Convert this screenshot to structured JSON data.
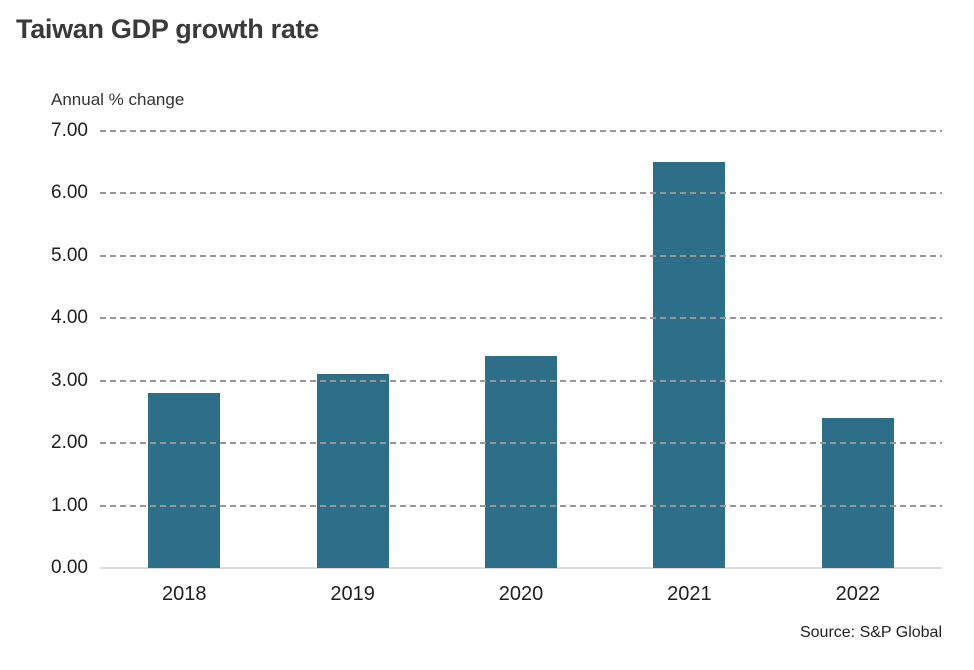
{
  "title": "Taiwan GDP growth rate",
  "axis_label": "Annual % change",
  "source": "Source: S&P Global",
  "colors": {
    "bar": "#2d6f89",
    "gridline": "#979797",
    "baseline": "#dcdcdc",
    "title_text": "#3a3a3a",
    "tick_text": "#1f1f1f"
  },
  "chart_data": {
    "type": "bar",
    "categories": [
      "2018",
      "2019",
      "2020",
      "2021",
      "2022"
    ],
    "values": [
      2.8,
      3.1,
      3.4,
      6.5,
      2.4
    ],
    "title": "Taiwan GDP growth rate",
    "xlabel": "",
    "ylabel": "Annual % change",
    "ylim": [
      0,
      7
    ],
    "ytick_step": 1,
    "ytick_labels": [
      "0.00",
      "1.00",
      "2.00",
      "3.00",
      "4.00",
      "5.00",
      "6.00",
      "7.00"
    ],
    "grid": "horizontal-dashed",
    "legend": "none",
    "source": "Source: S&P Global"
  }
}
